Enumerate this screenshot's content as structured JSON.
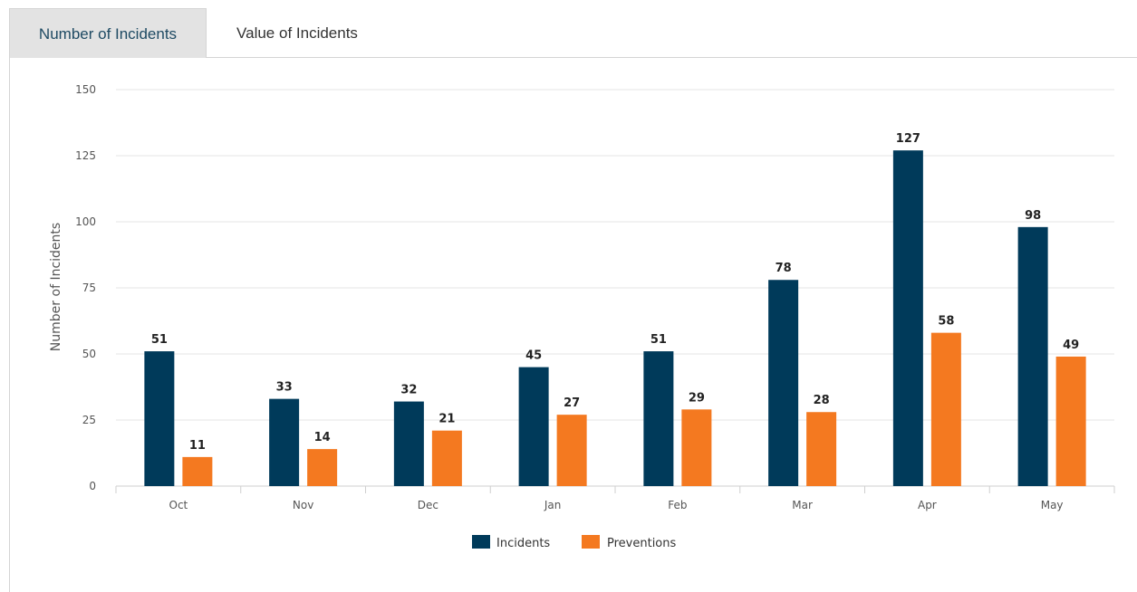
{
  "tabs": [
    {
      "label": "Number of Incidents",
      "active": true
    },
    {
      "label": "Value of Incidents",
      "active": false
    }
  ],
  "colors": {
    "incidents": "#003a5a",
    "preventions": "#f47920",
    "grid": "#e6e6e6",
    "axis": "#cfcfcf"
  },
  "chart_data": {
    "type": "bar",
    "ylabel": "Number of Incidents",
    "ylim": [
      0,
      150
    ],
    "yticks": [
      0,
      25,
      50,
      75,
      100,
      125,
      150
    ],
    "categories": [
      "Oct",
      "Nov",
      "Dec",
      "Jan",
      "Feb",
      "Mar",
      "Apr",
      "May"
    ],
    "series": [
      {
        "name": "Incidents",
        "values": [
          51,
          33,
          32,
          45,
          51,
          78,
          127,
          98
        ]
      },
      {
        "name": "Preventions",
        "values": [
          11,
          14,
          21,
          27,
          29,
          28,
          58,
          49
        ]
      }
    ],
    "data_labels": true,
    "grid": true,
    "legend": "bottom-center"
  }
}
